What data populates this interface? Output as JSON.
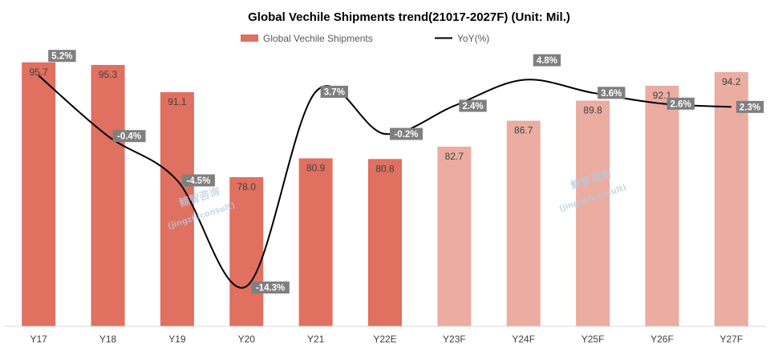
{
  "chart_data": {
    "type": "bar",
    "title": "Global Vechile Shipments trend(21017-2027F) (Unit: Mil.)",
    "categories": [
      "Y17",
      "Y18",
      "Y19",
      "Y20",
      "Y21",
      "Y22E",
      "Y23F",
      "Y24F",
      "Y25F",
      "Y26F",
      "Y27F"
    ],
    "series": [
      {
        "name": "Global Vechile Shipments",
        "type": "bar",
        "values": [
          95.7,
          95.3,
          91.1,
          78.0,
          80.9,
          80.8,
          82.7,
          86.7,
          89.8,
          92.1,
          94.2
        ],
        "labels": [
          "95.7",
          "95.3",
          "91.1",
          "78.0",
          "80.9",
          "80.8",
          "82.7",
          "86.7",
          "89.8",
          "92.1",
          "94.2"
        ],
        "colors": [
          "#e07060",
          "#e07060",
          "#e07060",
          "#e07060",
          "#e07060",
          "#e07060",
          "#ebaca1",
          "#ebaca1",
          "#ebaca1",
          "#ebaca1",
          "#ebaca1"
        ]
      },
      {
        "name": "YoY(%)",
        "type": "line",
        "values": [
          5.2,
          -0.4,
          -4.5,
          -14.3,
          3.7,
          -0.2,
          2.4,
          4.8,
          3.6,
          2.6,
          2.3
        ],
        "labels": [
          "5.2%",
          "-0.4%",
          "-4.5%",
          "-14.3%",
          "3.7%",
          "-0.2%",
          "2.4%",
          "4.8%",
          "3.6%",
          "2.6%",
          "2.3%"
        ],
        "color": "#000000"
      }
    ],
    "bar_axis_range": [
      55,
      100
    ],
    "line_axis_range": [
      -18,
      9
    ],
    "grid": false,
    "legend_position": "top",
    "watermarks": [
      "鲸智咨询",
      "(jingzhiconsult)"
    ],
    "colors": {
      "actual": "#e07060",
      "forecast": "#ebaca1",
      "label_box": "#7f7f7f",
      "axis": "#d9d9d9"
    }
  }
}
